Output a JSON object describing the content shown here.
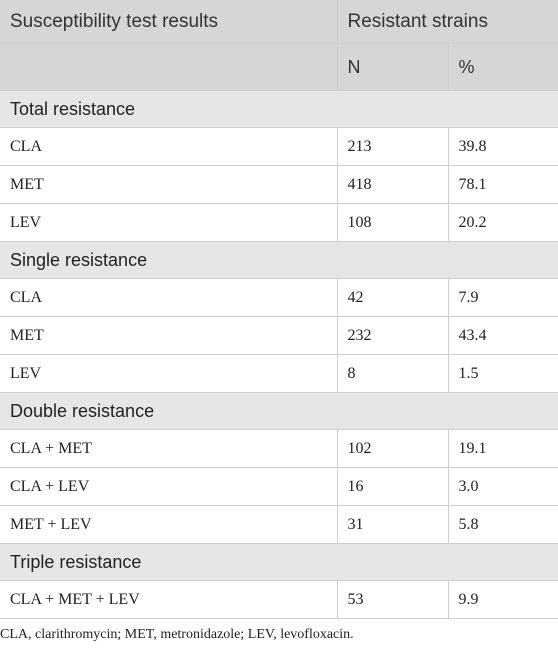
{
  "table": {
    "header": {
      "col1": "Susceptibility test results",
      "col2": "Resistant strains",
      "n": "N",
      "pct": "%"
    },
    "groups": [
      {
        "title": "Total resistance",
        "rows": [
          {
            "label": "CLA",
            "n": "213",
            "pct": "39.8"
          },
          {
            "label": "MET",
            "n": "418",
            "pct": "78.1"
          },
          {
            "label": "LEV",
            "n": "108",
            "pct": "20.2"
          }
        ]
      },
      {
        "title": "Single resistance",
        "rows": [
          {
            "label": "CLA",
            "n": "42",
            "pct": "7.9"
          },
          {
            "label": "MET",
            "n": "232",
            "pct": "43.4"
          },
          {
            "label": "LEV",
            "n": "8",
            "pct": "1.5"
          }
        ]
      },
      {
        "title": "Double resistance",
        "rows": [
          {
            "label": "CLA + MET",
            "n": "102",
            "pct": "19.1"
          },
          {
            "label": "CLA + LEV",
            "n": "16",
            "pct": "3.0"
          },
          {
            "label": "MET + LEV",
            "n": "31",
            "pct": "5.8"
          }
        ]
      },
      {
        "title": "Triple resistance",
        "rows": [
          {
            "label": "CLA + MET + LEV",
            "n": "53",
            "pct": "9.9"
          }
        ]
      }
    ]
  },
  "footnote": "CLA, clarithromycin; MET, metronidazole; LEV, levofloxacin."
}
